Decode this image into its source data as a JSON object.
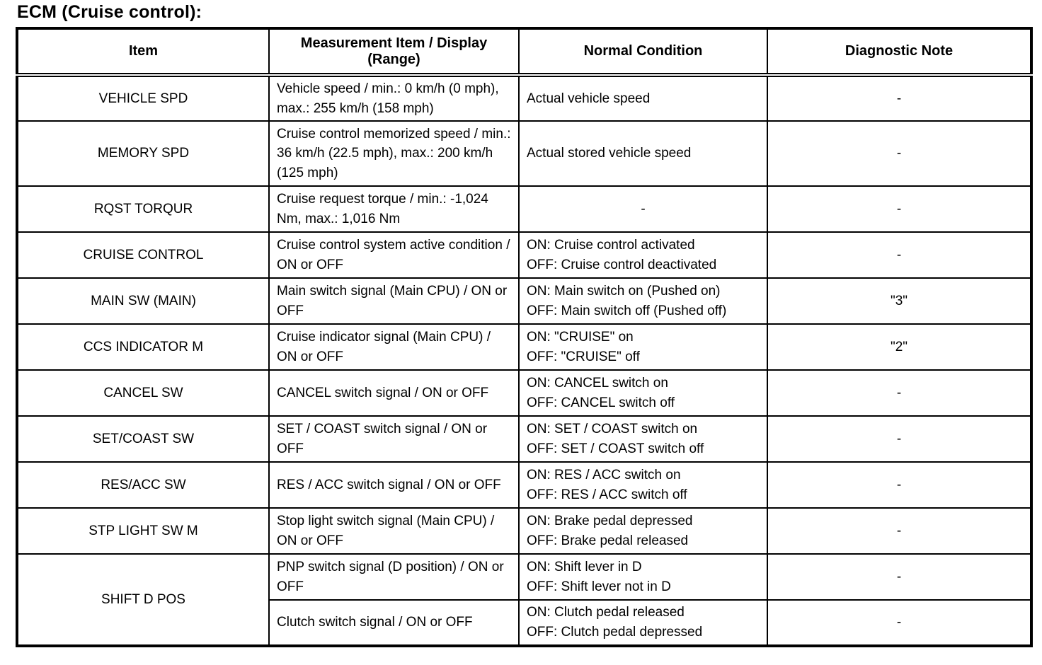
{
  "page": {
    "title": "ECM (Cruise control):"
  },
  "table": {
    "headers": {
      "item": "Item",
      "measurement": "Measurement Item / Display\n(Range)",
      "normal": "Normal Condition",
      "note": "Diagnostic Note"
    },
    "rows": [
      {
        "item": "VEHICLE SPD",
        "measurement": "Vehicle speed / min.: 0 km/h (0 mph), max.: 255 km/h (158 mph)",
        "normal": "Actual vehicle speed",
        "note": "-"
      },
      {
        "item": "MEMORY SPD",
        "measurement": "Cruise control memorized speed / min.: 36 km/h (22.5 mph), max.: 200 km/h (125 mph)",
        "normal": "Actual stored vehicle speed",
        "note": "-"
      },
      {
        "item": "RQST TORQUR",
        "measurement": "Cruise request torque / min.: -1,024 Nm, max.: 1,016 Nm",
        "normal": "-",
        "note": "-"
      },
      {
        "item": "CRUISE CONTROL",
        "measurement": "Cruise control system active condition / ON or OFF",
        "normal": "ON: Cruise control activated\nOFF: Cruise control deactivated",
        "note": "-"
      },
      {
        "item": "MAIN SW (MAIN)",
        "measurement": "Main switch signal (Main CPU) / ON or OFF",
        "normal": "ON: Main switch on (Pushed on)\nOFF: Main switch off (Pushed off)",
        "note": "\"3\""
      },
      {
        "item": "CCS INDICATOR M",
        "measurement": "Cruise indicator signal (Main CPU) / ON or OFF",
        "normal": "ON: \"CRUISE\" on\nOFF: \"CRUISE\" off",
        "note": "\"2\""
      },
      {
        "item": "CANCEL SW",
        "measurement": "CANCEL switch signal / ON or OFF",
        "normal": "ON: CANCEL switch on\nOFF: CANCEL switch off",
        "note": "-"
      },
      {
        "item": "SET/COAST SW",
        "measurement": "SET / COAST switch signal / ON or OFF",
        "normal": "ON: SET / COAST switch on\nOFF: SET / COAST switch off",
        "note": "-"
      },
      {
        "item": "RES/ACC SW",
        "measurement": "RES / ACC switch signal / ON or OFF",
        "normal": "ON: RES / ACC switch on\nOFF: RES / ACC switch off",
        "note": "-"
      },
      {
        "item": "STP LIGHT SW M",
        "measurement": "Stop light switch signal (Main CPU) / ON or OFF",
        "normal": "ON: Brake pedal depressed\nOFF: Brake pedal released",
        "note": "-"
      },
      {
        "item": "SHIFT D POS",
        "measurement": "PNP switch signal (D position) / ON or OFF",
        "normal": "ON: Shift lever in D\nOFF: Shift lever not in D",
        "note": "-"
      },
      {
        "item": "",
        "measurement": "Clutch switch signal / ON or OFF",
        "normal": "ON: Clutch pedal released\nOFF: Clutch pedal depressed",
        "note": "-"
      }
    ]
  }
}
